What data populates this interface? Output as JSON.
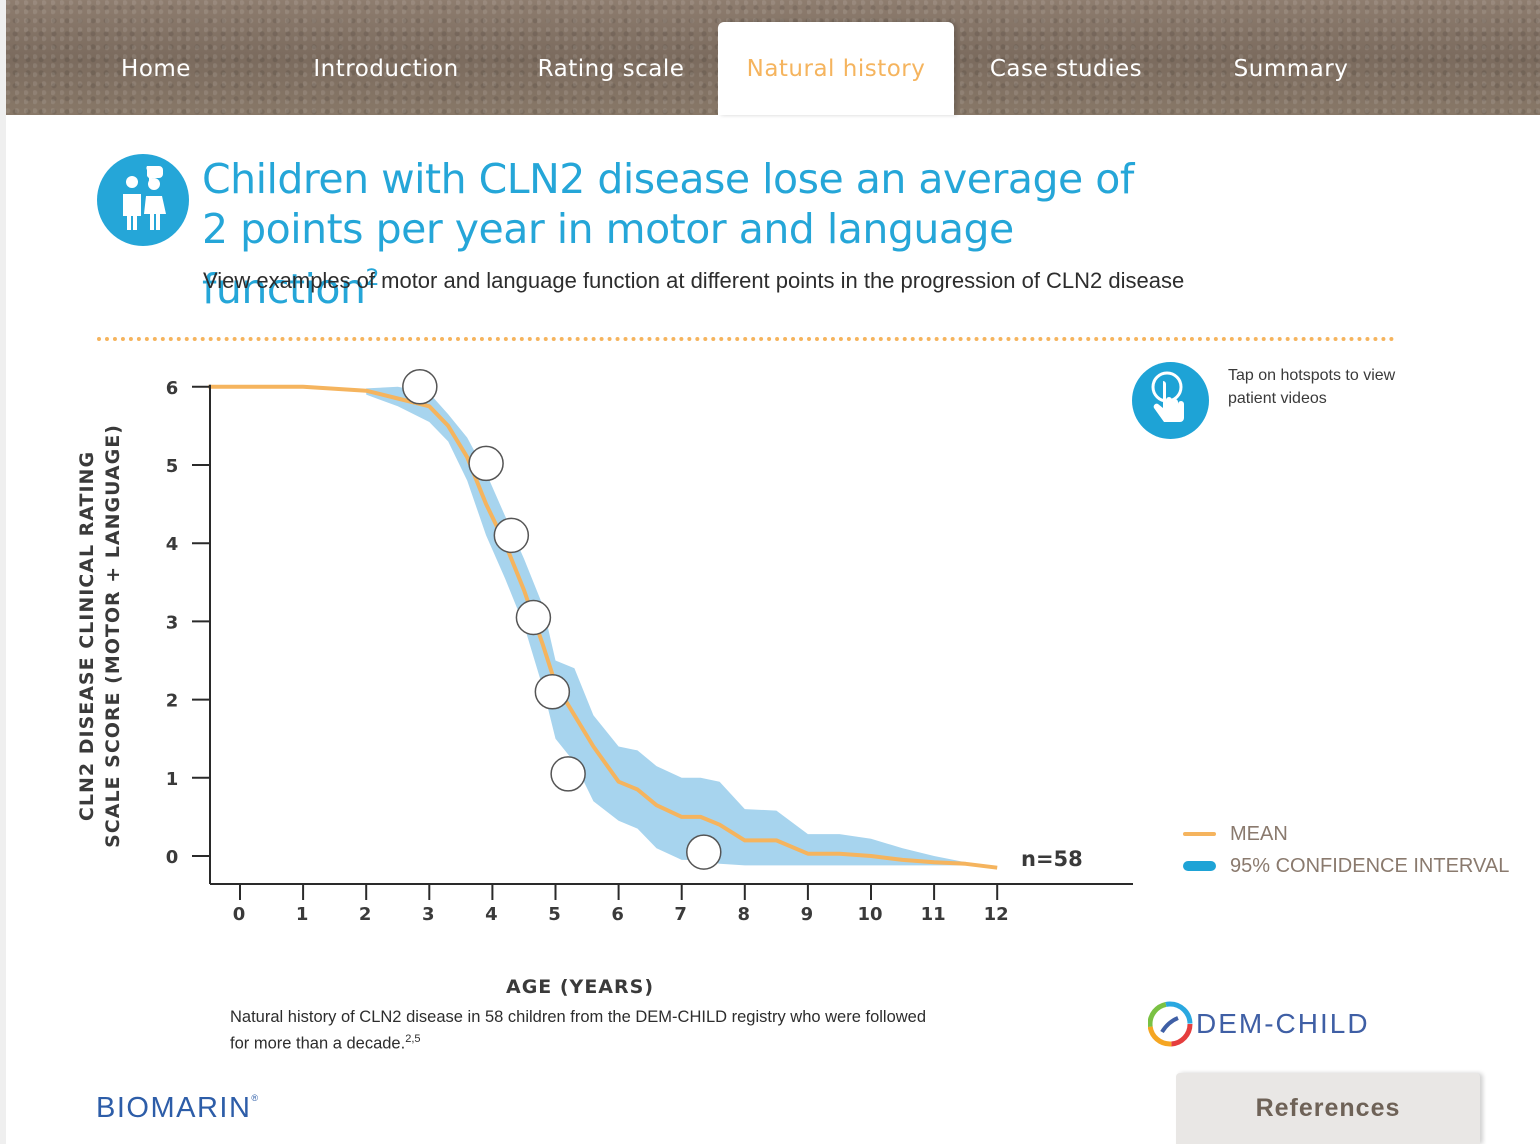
{
  "nav": {
    "tabs": [
      {
        "label": "Home",
        "active": false
      },
      {
        "label": "Introduction",
        "active": false
      },
      {
        "label": "Rating scale",
        "active": false
      },
      {
        "label": "Natural history",
        "active": true
      },
      {
        "label": "Case studies",
        "active": false
      },
      {
        "label": "Summary",
        "active": false
      }
    ]
  },
  "header": {
    "icon": "family-doctor-icon",
    "title_line1": "Children with CLN2 disease lose an average of",
    "title_line2": "2 points per year in motor and language function",
    "title_sup": "2",
    "subtitle": "View examples of motor and language function at different points in the progression of CLN2 disease"
  },
  "hint": {
    "icon": "tap-hand-icon",
    "text": "Tap on hotspots to view patient videos"
  },
  "legend": {
    "mean": "MEAN",
    "ci": "95% CONFIDENCE INTERVAL"
  },
  "caption": {
    "text": "Natural history of CLN2 disease in 58 children from the DEM-CHILD registry who were followed for more than a decade.",
    "sup": "2,5"
  },
  "logos": {
    "dem_child": "DEM-CHILD",
    "biomarin": "BIOMARIN",
    "biomarin_mark": "®"
  },
  "references_label": "References",
  "colors": {
    "accent_blue": "#25a6d8",
    "mean_orange": "#f5b45e",
    "ci_blue": "#a7d4ee",
    "nav_brown": "#857565"
  },
  "chart_data": {
    "type": "line",
    "xlabel": "AGE (YEARS)",
    "ylabel_line1": "CLN2 DISEASE CLINICAL RATING",
    "ylabel_line2": "SCALE SCORE (MOTOR + LANGUAGE)",
    "xlim": [
      0,
      12
    ],
    "ylim": [
      0,
      6
    ],
    "x_ticks": [
      0,
      1,
      2,
      3,
      4,
      5,
      6,
      7,
      8,
      9,
      10,
      11,
      12
    ],
    "y_ticks": [
      0,
      1,
      2,
      3,
      4,
      5,
      6
    ],
    "annotation": "n=58",
    "series": [
      {
        "name": "MEAN",
        "x": [
          -0.5,
          0,
          1,
          2,
          2.5,
          3,
          3.3,
          3.6,
          3.9,
          4.2,
          4.5,
          4.8,
          5,
          5.3,
          5.6,
          6,
          6.3,
          6.6,
          7,
          7.3,
          7.6,
          8,
          8.5,
          9,
          9.5,
          10,
          10.5,
          11,
          11.5,
          12
        ],
        "y": [
          6,
          6,
          6,
          5.95,
          5.85,
          5.75,
          5.5,
          5.1,
          4.5,
          4.0,
          3.4,
          2.7,
          2.2,
          1.8,
          1.4,
          0.95,
          0.85,
          0.65,
          0.5,
          0.5,
          0.4,
          0.2,
          0.2,
          0.03,
          0.03,
          0.0,
          -0.05,
          -0.08,
          -0.1,
          -0.15
        ]
      },
      {
        "name": "95% CONFIDENCE INTERVAL",
        "x": [
          2,
          2.5,
          3,
          3.3,
          3.6,
          3.9,
          4.2,
          4.5,
          4.8,
          5,
          5.3,
          5.6,
          6,
          6.3,
          6.6,
          7,
          7.3,
          7.6,
          8,
          8.5,
          9,
          9.5,
          10,
          10.5,
          11,
          11.5
        ],
        "upper": [
          5.98,
          6.0,
          5.92,
          5.65,
          5.35,
          4.9,
          4.35,
          3.8,
          3.2,
          2.5,
          2.4,
          1.8,
          1.4,
          1.35,
          1.15,
          1.0,
          1.0,
          0.95,
          0.6,
          0.58,
          0.28,
          0.28,
          0.22,
          0.1,
          0.0,
          -0.08
        ],
        "lower": [
          5.9,
          5.75,
          5.55,
          5.3,
          4.8,
          4.1,
          3.55,
          2.95,
          2.15,
          1.5,
          1.2,
          0.7,
          0.45,
          0.35,
          0.1,
          -0.05,
          -0.05,
          -0.1,
          -0.12,
          -0.12,
          -0.12,
          -0.12,
          -0.12,
          -0.12,
          -0.12,
          -0.12
        ]
      }
    ],
    "hotspots": [
      {
        "x": 2.85,
        "y": 6.0
      },
      {
        "x": 3.9,
        "y": 5.02
      },
      {
        "x": 4.3,
        "y": 4.1
      },
      {
        "x": 4.65,
        "y": 3.05
      },
      {
        "x": 4.95,
        "y": 2.1
      },
      {
        "x": 5.2,
        "y": 1.05
      },
      {
        "x": 7.35,
        "y": 0.05
      }
    ]
  }
}
